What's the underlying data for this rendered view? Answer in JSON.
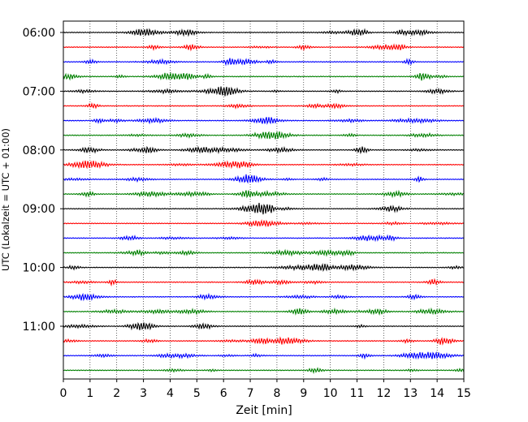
{
  "chart_data": {
    "type": "line",
    "title": "",
    "xlabel": "Zeit  [min]",
    "ylabel": "UTC (Lokalzeit = UTC + 01:00)",
    "xlim": [
      0,
      15
    ],
    "x_ticks": [
      0,
      1,
      2,
      3,
      4,
      5,
      6,
      7,
      8,
      9,
      10,
      11,
      12,
      13,
      14,
      15
    ],
    "grid": "vertical dotted",
    "trace_count": 24,
    "trace_interval_min": 15,
    "colors_cycle": [
      "#000000",
      "#ff0000",
      "#0000ff",
      "#008000"
    ],
    "y_ticks": [
      {
        "label": "06:00",
        "trace": 0
      },
      {
        "label": "07:00",
        "trace": 4
      },
      {
        "label": "08:00",
        "trace": 8
      },
      {
        "label": "09:00",
        "trace": 12
      },
      {
        "label": "10:00",
        "trace": 16
      },
      {
        "label": "11:00",
        "trace": 20
      }
    ]
  }
}
